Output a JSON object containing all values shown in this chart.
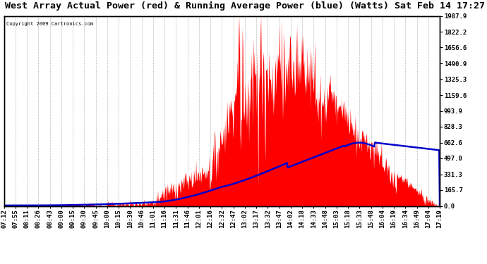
{
  "title": "West Array Actual Power (red) & Running Average Power (blue) (Watts) Sat Feb 14 17:27",
  "copyright": "Copyright 2009 Cartronics.com",
  "background_color": "#ffffff",
  "plot_bg_color": "#ffffff",
  "grid_color": "#aaaaaa",
  "yticks": [
    0.0,
    165.7,
    331.3,
    497.0,
    662.6,
    828.3,
    993.9,
    1159.6,
    1325.3,
    1490.9,
    1656.6,
    1822.2,
    1987.9
  ],
  "ymax": 1987.9,
  "ymin": 0.0,
  "red_color": "#ff0000",
  "blue_color": "#0000cc",
  "tick_label_fontsize": 6.5,
  "title_fontsize": 9.5,
  "x_labels": [
    "07:12",
    "07:55",
    "08:11",
    "08:26",
    "08:43",
    "09:00",
    "09:15",
    "09:30",
    "09:45",
    "10:00",
    "10:15",
    "10:30",
    "10:46",
    "11:01",
    "11:16",
    "11:31",
    "11:46",
    "12:01",
    "12:16",
    "12:32",
    "12:47",
    "13:02",
    "13:17",
    "13:32",
    "13:47",
    "14:02",
    "14:18",
    "14:33",
    "14:48",
    "15:03",
    "15:18",
    "15:33",
    "15:48",
    "16:04",
    "16:19",
    "16:34",
    "16:49",
    "17:04",
    "17:19"
  ]
}
